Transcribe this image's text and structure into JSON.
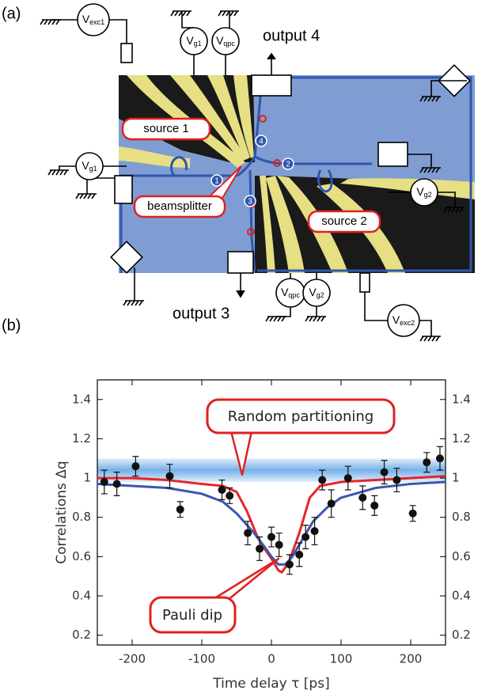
{
  "panel_a": {
    "label": "(a)",
    "voltages": [
      {
        "main": "V",
        "sub": "exc1"
      },
      {
        "main": "V",
        "sub": "g1"
      },
      {
        "main": "V",
        "sub": "qpc"
      },
      {
        "main": "V",
        "sub": "g1"
      },
      {
        "main": "V",
        "sub": "g2"
      },
      {
        "main": "V",
        "sub": "qpc"
      },
      {
        "main": "V",
        "sub": "g2"
      },
      {
        "main": "V",
        "sub": "exc2"
      }
    ],
    "outputs": [
      "output 4",
      "output 3"
    ],
    "sources": [
      "source 1",
      "source 2"
    ],
    "beamsplitter": "beamsplitter",
    "path_markers": [
      "1",
      "2",
      "3",
      "4"
    ]
  },
  "chart_data": {
    "type": "scatter",
    "panel_label": "(b)",
    "x_label": "Time delay τ [ps]",
    "y_label": "Correlations Δq",
    "annotations": [
      "Random partitioning",
      "Pauli dip"
    ],
    "color": "#111111",
    "x": [
      -240,
      -222,
      -195,
      -146,
      -131,
      -71,
      -60,
      -34,
      -17,
      0,
      11,
      26,
      40,
      49,
      62,
      73,
      86,
      110,
      131,
      148,
      162,
      180,
      203,
      223,
      242
    ],
    "values": [
      0.98,
      0.97,
      1.06,
      1.01,
      0.84,
      0.94,
      0.91,
      0.72,
      0.64,
      0.7,
      0.66,
      0.56,
      0.61,
      0.7,
      0.73,
      0.99,
      0.87,
      1.0,
      0.9,
      0.86,
      1.03,
      0.99,
      0.82,
      1.08,
      1.1
    ],
    "errors": [
      0.06,
      0.06,
      0.05,
      0.06,
      0.04,
      0.05,
      0.04,
      0.06,
      0.06,
      0.05,
      0.06,
      0.05,
      0.06,
      0.06,
      0.07,
      0.05,
      0.07,
      0.06,
      0.06,
      0.05,
      0.06,
      0.06,
      0.04,
      0.05,
      0.06
    ],
    "fits": [
      {
        "color": "#e8242b",
        "x": [
          -250,
          -200,
          -150,
          -100,
          -70,
          -50,
          -35,
          -20,
          -10,
          0,
          10,
          15,
          25,
          40,
          55,
          70,
          100,
          150,
          200,
          250
        ],
        "values": [
          1.0,
          1.0,
          0.99,
          0.97,
          0.96,
          0.93,
          0.83,
          0.7,
          0.64,
          0.59,
          0.53,
          0.52,
          0.57,
          0.72,
          0.9,
          0.96,
          0.98,
          0.99,
          1.0,
          1.01
        ]
      },
      {
        "color": "#3d55b0",
        "x": [
          -250,
          -200,
          -150,
          -100,
          -70,
          -50,
          -25,
          -10,
          0,
          10,
          20,
          30,
          40,
          60,
          80,
          100,
          150,
          200,
          250
        ],
        "values": [
          0.97,
          0.96,
          0.95,
          0.92,
          0.88,
          0.82,
          0.72,
          0.65,
          0.6,
          0.56,
          0.56,
          0.6,
          0.66,
          0.78,
          0.85,
          0.9,
          0.95,
          0.97,
          0.98
        ]
      }
    ],
    "band_range": [
      0.98,
      1.1
    ],
    "band_color": "#3b8fe0",
    "xlim": [
      -250,
      250
    ],
    "xticks": [
      -200,
      -100,
      0,
      100,
      200
    ],
    "ylim": [
      0.15,
      1.5
    ],
    "yticks": [
      0.2,
      0.4,
      0.6,
      0.8,
      1,
      1.2,
      1.4
    ],
    "y2lim": [
      0.15,
      1.5
    ],
    "y2ticks": [
      0.2,
      0.4,
      0.6,
      0.8,
      1,
      1.2,
      1.4
    ]
  }
}
